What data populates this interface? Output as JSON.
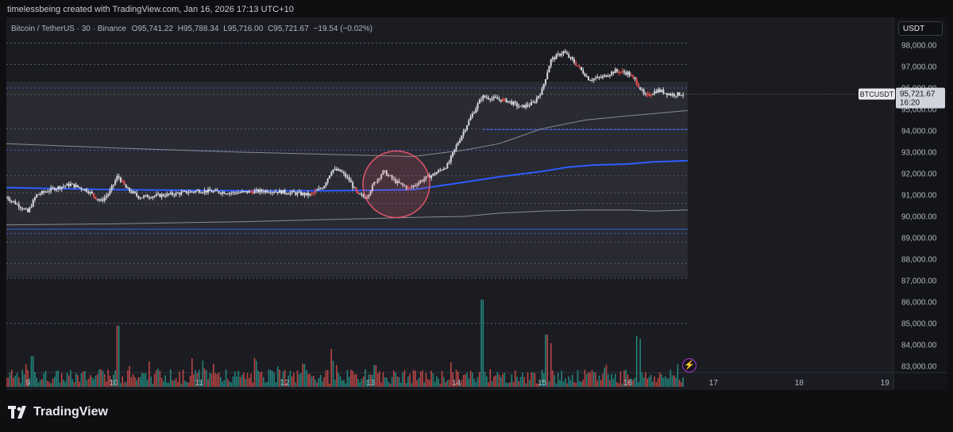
{
  "header": {
    "credit": "timelessbeing created with TradingView.com, Jan 16, 2026 17:13 UTC+10"
  },
  "legend": {
    "symbol": "Bitcoin / TetherUS · 30 · Binance",
    "open": "O95,741.22",
    "high": "H95,788.34",
    "low": "L95,716.00",
    "close": "C95,721.67",
    "change": "−19.54 (−0.02%)"
  },
  "currency_button": "USDT",
  "price_label": {
    "ticker": "BTCUSDT",
    "price": "95,721.67",
    "countdown": "16:20"
  },
  "footer": {
    "brand": "TradingView"
  },
  "icons": {
    "alert": "lightning-icon",
    "logo": "tradingview-logo-icon"
  },
  "colors": {
    "up": "#d9dadf",
    "down": "#ef5350",
    "vol_up": "#26a69a",
    "vol_down": "#ef5350",
    "vwap": "#2962ff",
    "highlight_circle": "#e0566a"
  },
  "chart_data": {
    "type": "candlestick",
    "symbol": "BTCUSDT",
    "interval": "30",
    "x_ticks": [
      "9",
      "10",
      "11",
      "12",
      "13",
      "14",
      "15",
      "16",
      "17",
      "18",
      "19"
    ],
    "y_ticks": [
      "98,000.00",
      "97,000.00",
      "96,000.00",
      "95,000.00",
      "94,000.00",
      "93,000.00",
      "92,000.00",
      "91,000.00",
      "90,000.00",
      "89,000.00",
      "88,000.00",
      "87,000.00",
      "86,000.00",
      "85,000.00",
      "84,000.00",
      "83,000.00"
    ],
    "x_range": [
      8.75,
      19.1
    ],
    "y_range": [
      82700,
      99300
    ],
    "last_price": 95721.67,
    "price_path": [
      [
        8.75,
        90900
      ],
      [
        8.9,
        90500
      ],
      [
        9.0,
        90200
      ],
      [
        9.1,
        91000
      ],
      [
        9.3,
        91300
      ],
      [
        9.5,
        91500
      ],
      [
        9.7,
        91200
      ],
      [
        9.85,
        90700
      ],
      [
        9.95,
        91100
      ],
      [
        10.05,
        91900
      ],
      [
        10.15,
        91300
      ],
      [
        10.3,
        90900
      ],
      [
        10.6,
        91000
      ],
      [
        11.0,
        91200
      ],
      [
        11.4,
        91100
      ],
      [
        11.8,
        91200
      ],
      [
        12.1,
        91100
      ],
      [
        12.3,
        91000
      ],
      [
        12.45,
        91400
      ],
      [
        12.55,
        92200
      ],
      [
        12.65,
        92100
      ],
      [
        12.75,
        91700
      ],
      [
        12.85,
        91000
      ],
      [
        12.95,
        90900
      ],
      [
        13.05,
        91600
      ],
      [
        13.15,
        92100
      ],
      [
        13.3,
        91600
      ],
      [
        13.45,
        91300
      ],
      [
        13.6,
        91700
      ],
      [
        13.75,
        92000
      ],
      [
        13.9,
        92400
      ],
      [
        14.0,
        93300
      ],
      [
        14.15,
        94500
      ],
      [
        14.3,
        95600
      ],
      [
        14.45,
        95500
      ],
      [
        14.6,
        95400
      ],
      [
        14.75,
        95100
      ],
      [
        14.9,
        95300
      ],
      [
        15.0,
        95900
      ],
      [
        15.1,
        97300
      ],
      [
        15.25,
        97700
      ],
      [
        15.4,
        97100
      ],
      [
        15.55,
        96400
      ],
      [
        15.7,
        96500
      ],
      [
        15.85,
        96800
      ],
      [
        16.0,
        96700
      ],
      [
        16.1,
        96300
      ],
      [
        16.2,
        95600
      ],
      [
        16.35,
        95900
      ],
      [
        16.5,
        95700
      ],
      [
        16.65,
        95721.67
      ]
    ],
    "red_candles_x": [
      9.78,
      10.12,
      11.62,
      12.33,
      12.85,
      13.45,
      14.55,
      15.42,
      15.92,
      16.05,
      16.12,
      16.25
    ],
    "volume_spikes": [
      [
        9.05,
        0.35
      ],
      [
        10.05,
        0.7
      ],
      [
        12.55,
        0.3
      ],
      [
        13.05,
        0.25
      ],
      [
        14.3,
        1.0
      ],
      [
        15.05,
        0.6
      ],
      [
        15.1,
        0.5
      ],
      [
        16.15,
        0.55
      ],
      [
        16.1,
        0.45
      ]
    ],
    "vwap_line": [
      [
        8.75,
        91350
      ],
      [
        10.0,
        91250
      ],
      [
        11.5,
        91200
      ],
      [
        12.5,
        91200
      ],
      [
        13.5,
        91250
      ],
      [
        14.1,
        91600
      ],
      [
        14.5,
        91850
      ],
      [
        15.0,
        92100
      ],
      [
        15.3,
        92300
      ],
      [
        15.6,
        92400
      ],
      [
        16.0,
        92450
      ],
      [
        16.3,
        92550
      ],
      [
        16.7,
        92600
      ]
    ],
    "upper_band": [
      [
        8.75,
        93400
      ],
      [
        10.0,
        93200
      ],
      [
        11.5,
        93000
      ],
      [
        12.5,
        92900
      ],
      [
        13.5,
        92800
      ],
      [
        14.1,
        93100
      ],
      [
        14.5,
        93400
      ],
      [
        15.0,
        94100
      ],
      [
        15.5,
        94500
      ],
      [
        16.0,
        94700
      ],
      [
        16.3,
        94800
      ],
      [
        16.7,
        94950
      ]
    ],
    "lower_band": [
      [
        8.75,
        89600
      ],
      [
        10.0,
        89650
      ],
      [
        11.5,
        89750
      ],
      [
        12.5,
        89850
      ],
      [
        13.5,
        89950
      ],
      [
        14.1,
        90000
      ],
      [
        14.5,
        90150
      ],
      [
        15.0,
        90250
      ],
      [
        15.5,
        90300
      ],
      [
        16.0,
        90300
      ],
      [
        16.3,
        90250
      ],
      [
        16.7,
        90300
      ]
    ],
    "dashed_levels": [
      87100,
      87800,
      88800,
      89200,
      89400,
      90600,
      91100,
      91900,
      93100,
      94100,
      95700,
      96000,
      97100,
      98100,
      85000
    ],
    "solid_levels": [
      {
        "y": 94050,
        "x_start": 14.3,
        "x_end": 16.7
      },
      {
        "y": 89400,
        "x_start": 8.75,
        "x_end": 16.7
      }
    ],
    "range_box": {
      "x_start": 8.75,
      "x_end": 16.7,
      "y_low": 87150,
      "y_high": 96300
    },
    "highlight_circle": {
      "x": 13.3,
      "y": 91500
    }
  }
}
